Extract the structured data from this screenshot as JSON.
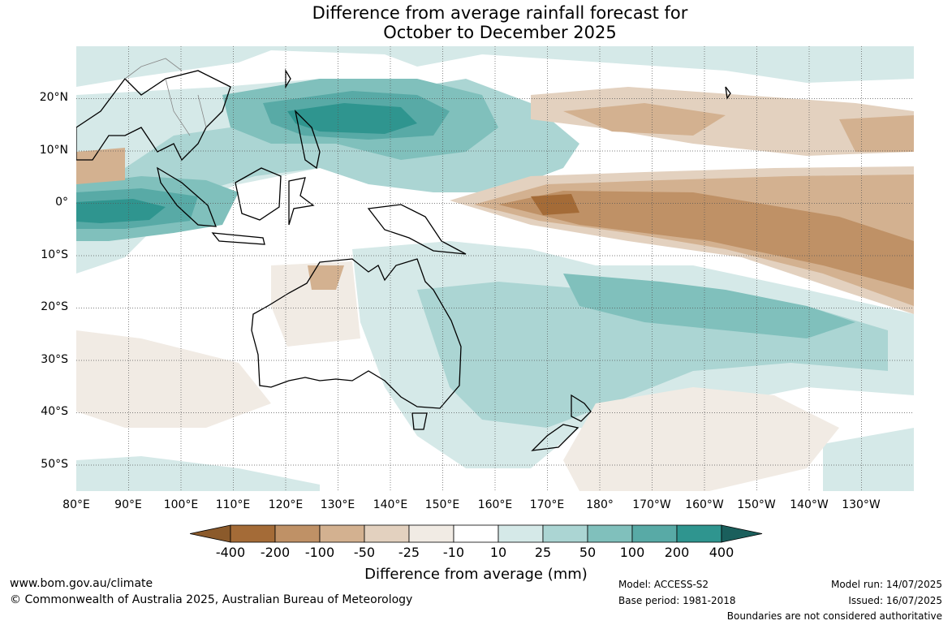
{
  "title": {
    "line1": "Difference from average rainfall forecast for",
    "line2": "October to December 2025"
  },
  "map": {
    "projection": "equirectangular",
    "lon_range": [
      80,
      240
    ],
    "lat_range": [
      -55,
      30
    ],
    "graticule": "dotted",
    "palette": {
      "-400": "#a46b37",
      "-200": "#bf9166",
      "-100": "#d3b190",
      "-50": "#e3d1bf",
      "-25": "#f1ebe4",
      "-10": "#ffffff",
      "10": "#d5e9e8",
      "25": "#abd5d3",
      "50": "#80c0bc",
      "100": "#58aaa6",
      "200": "#2f958f",
      "400": "#1f6f6b"
    }
  },
  "lat_labels": [
    "20°N",
    "10°N",
    "0°",
    "10°S",
    "20°S",
    "30°S",
    "40°S",
    "50°S"
  ],
  "lon_labels": [
    "80°E",
    "90°E",
    "100°E",
    "110°E",
    "120°E",
    "130°E",
    "140°E",
    "150°E",
    "160°E",
    "170°E",
    "180°",
    "170°W",
    "160°W",
    "150°W",
    "140°W",
    "130°W"
  ],
  "colorbar": {
    "labels": [
      "-400",
      "-200",
      "-100",
      "-50",
      "-25",
      "-10",
      "10",
      "25",
      "50",
      "100",
      "200",
      "400"
    ],
    "colors": [
      "#a46b37",
      "#bf9166",
      "#d3b190",
      "#e3d1bf",
      "#f1ebe4",
      "#ffffff",
      "#d5e9e8",
      "#abd5d3",
      "#80c0bc",
      "#58aaa6",
      "#2f958f"
    ],
    "end_low": "#8b5a2b",
    "end_high": "#1a5f5c",
    "title": "Difference from average (mm)"
  },
  "footer": {
    "website": "www.bom.gov.au/climate",
    "copyright": "© Commonwealth of Australia 2025, Australian Bureau of Meteorology",
    "model": "Model: ACCESS-S2",
    "base_period": "Base period: 1981-2018",
    "model_run": "Model run: 14/07/2025",
    "issued": "Issued: 16/07/2025",
    "disclaimer": "Boundaries are not considered authoritative"
  }
}
